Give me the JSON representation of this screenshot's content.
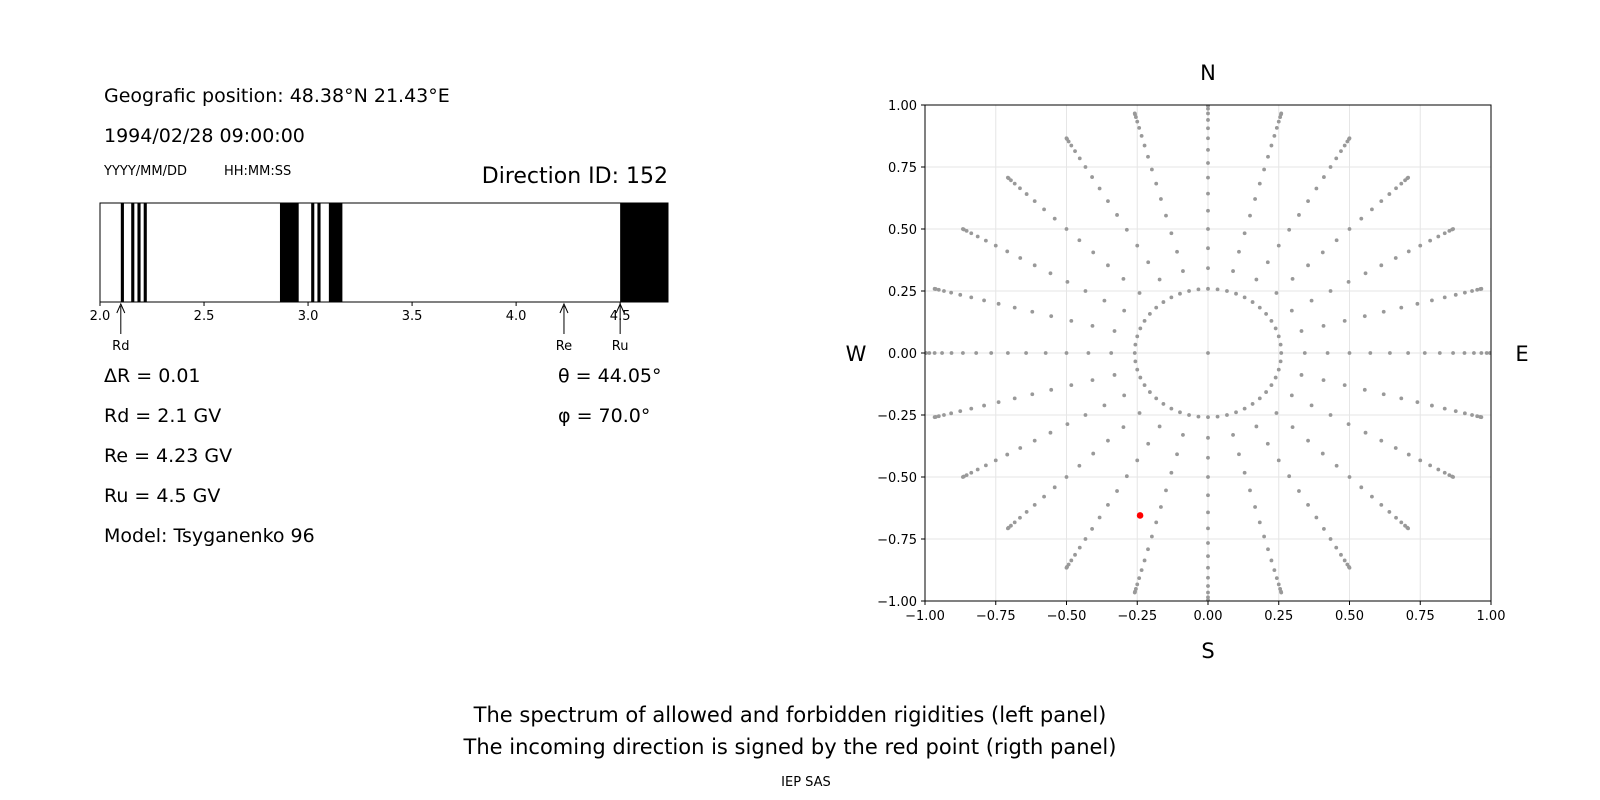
{
  "header": {
    "position_line": "Geografic position: 48.38°N 21.43°E",
    "datetime_line": "1994/02/28 09:00:00",
    "date_format_label": "YYYY/MM/DD",
    "time_format_label": "HH:MM:SS",
    "direction_label": "Direction ID: 152"
  },
  "params": {
    "delta_r": "ΔR = 0.01",
    "rd": "Rd = 2.1 GV",
    "re": "Re = 4.23 GV",
    "ru": "Ru = 4.5 GV",
    "model": "Model: Tsyganenko 96",
    "theta": "θ = 44.05°",
    "phi": "φ = 70.0°"
  },
  "footer": {
    "line1": "The spectrum of allowed and forbidden rigidities (left panel)",
    "line2": "The incoming direction is signed by the red point (rigth panel)",
    "credit": "IEP SAS"
  },
  "chart_data": [
    {
      "type": "bar",
      "name_in_figure": "rigidity spectrum",
      "xlim": [
        2.0,
        4.73
      ],
      "x_ticks": [
        "2.0",
        "2.5",
        "3.0",
        "3.5",
        "4.0",
        "4.5"
      ],
      "x_tick_values": [
        2.0,
        2.5,
        3.0,
        3.5,
        4.0,
        4.5
      ],
      "forbidden_bands": [
        [
          2.1,
          2.115
        ],
        [
          2.15,
          2.165
        ],
        [
          2.18,
          2.195
        ],
        [
          2.21,
          2.225
        ],
        [
          2.865,
          2.955
        ],
        [
          3.015,
          3.03
        ],
        [
          3.045,
          3.06
        ],
        [
          3.1,
          3.165
        ],
        [
          4.5,
          4.73
        ]
      ],
      "markers": [
        {
          "label": "Rd",
          "x": 2.1
        },
        {
          "label": "Re",
          "x": 4.23
        },
        {
          "label": "Ru",
          "x": 4.5
        }
      ],
      "colors": {
        "forbidden": "#000000",
        "allowed": "#ffffff"
      }
    },
    {
      "type": "scatter",
      "name_in_figure": "direction map",
      "xlim": [
        -1.0,
        1.0
      ],
      "ylim": [
        -1.0,
        1.0
      ],
      "x_ticks": [
        "−1.00",
        "−0.75",
        "−0.50",
        "−0.25",
        "0.00",
        "0.25",
        "0.50",
        "0.75",
        "1.00"
      ],
      "y_ticks": [
        "1.00",
        "0.75",
        "0.50",
        "0.25",
        "0.00",
        "−0.25",
        "−0.50",
        "−0.75",
        "−1.00"
      ],
      "tick_values": [
        -1.0,
        -0.75,
        -0.5,
        -0.25,
        0.0,
        0.25,
        0.5,
        0.75,
        1.0
      ],
      "grid": true,
      "compass": {
        "north": "N",
        "south": "S",
        "west": "W",
        "east": "E"
      },
      "grid_points": {
        "azimuth_step_deg": 15,
        "zenith_step_deg": 5,
        "zenith_max_deg": 90,
        "first_ring_deg": 15,
        "radius_function": "sin(zenith)",
        "color": "#999999"
      },
      "selected_point": {
        "x": -0.24,
        "y": -0.655,
        "color": "#ff0000"
      }
    }
  ]
}
